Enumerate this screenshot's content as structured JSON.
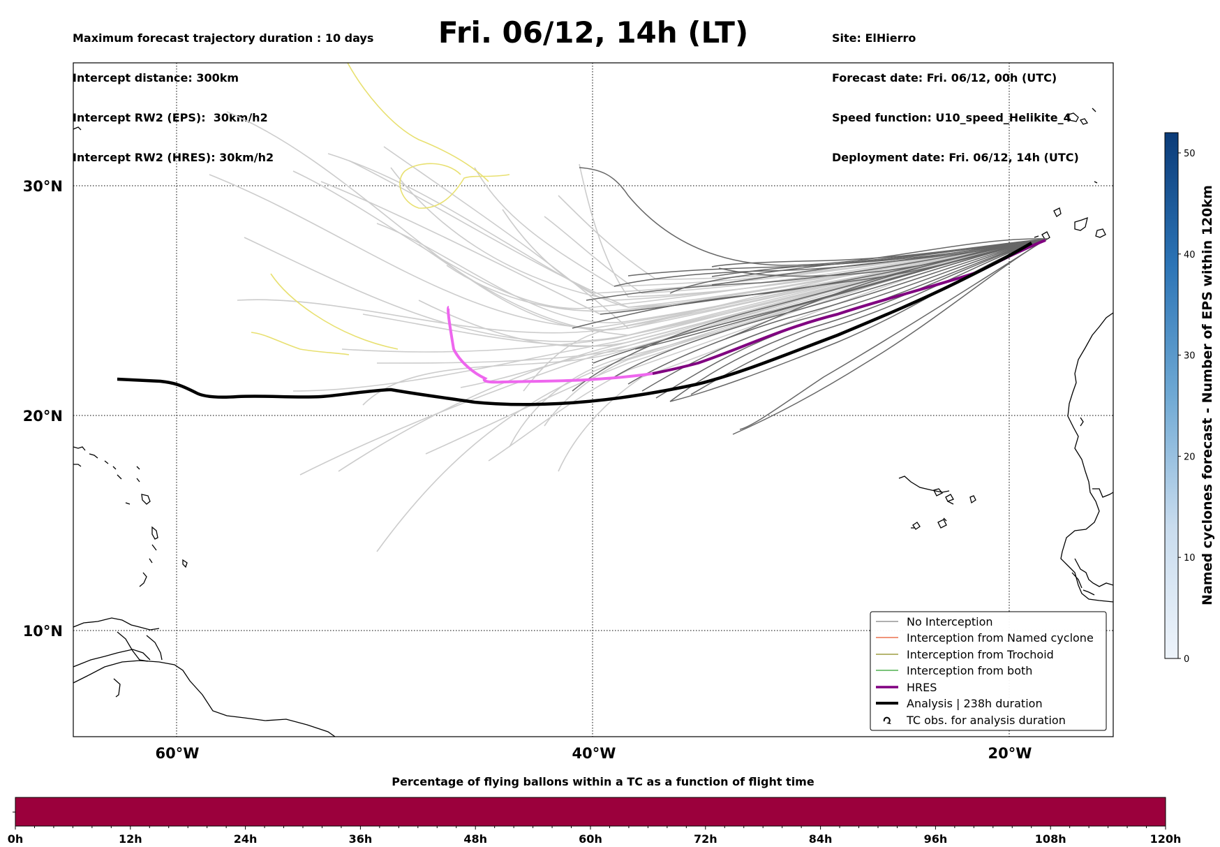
{
  "header": {
    "left_lines": [
      "Maximum forecast trajectory duration : 10 days",
      "Intercept distance: 300km",
      "Intercept RW2 (EPS):  30km/h2",
      "Intercept RW2 (HRES): 30km/h2"
    ],
    "title": "Fri. 06/12, 14h (LT)",
    "right_lines": [
      "Site: ElHierro",
      "Forecast date: Fri. 06/12, 00h (UTC)",
      "Speed function: U10_speed_Helikite_4",
      "Deployment date: Fri. 06/12, 14h (UTC)"
    ]
  },
  "map": {
    "lon_labels": [
      "60°W",
      "40°W",
      "20°W"
    ],
    "lat_labels": [
      "30°N",
      "20°N",
      "10°N"
    ],
    "colors": {
      "no_interception": "#666666",
      "named_cyclone": "#e8562b",
      "trochoid": "#8b8b1a",
      "both": "#2ca02c",
      "hres": "#800080",
      "hres_light": "#ee66ee",
      "analysis": "#000000",
      "faded_track": "#cccccc",
      "yellow_track": "#e8e070"
    }
  },
  "legend": {
    "items": [
      {
        "label": "No Interception",
        "color": "#808080",
        "width": 1.2
      },
      {
        "label": "Interception from Named cyclone",
        "color": "#e8562b",
        "width": 1.2
      },
      {
        "label": "Interception from Trochoid",
        "color": "#8b8b1a",
        "width": 1.2
      },
      {
        "label": "Interception from both",
        "color": "#2ca02c",
        "width": 1.2
      },
      {
        "label": "HRES",
        "color": "#800080",
        "width": 3.5
      },
      {
        "label": "Analysis | 238h duration",
        "color": "#000000",
        "width": 4
      },
      {
        "label": "TC obs. for analysis duration",
        "icon": "cyclone-icon"
      }
    ]
  },
  "colorbar": {
    "title": "Named cyclones forecast - Number of EPS within 120km",
    "ticks": [
      "0",
      "10",
      "20",
      "30",
      "40",
      "50"
    ],
    "range": [
      0,
      52
    ]
  },
  "timeline": {
    "title": "Percentage of flying ballons within a TC as a function of flight time",
    "ticks": [
      "0h",
      "12h",
      "24h",
      "36h",
      "48h",
      "60h",
      "72h",
      "84h",
      "96h",
      "108h",
      "120h"
    ],
    "bar_color": "#9b003c"
  }
}
